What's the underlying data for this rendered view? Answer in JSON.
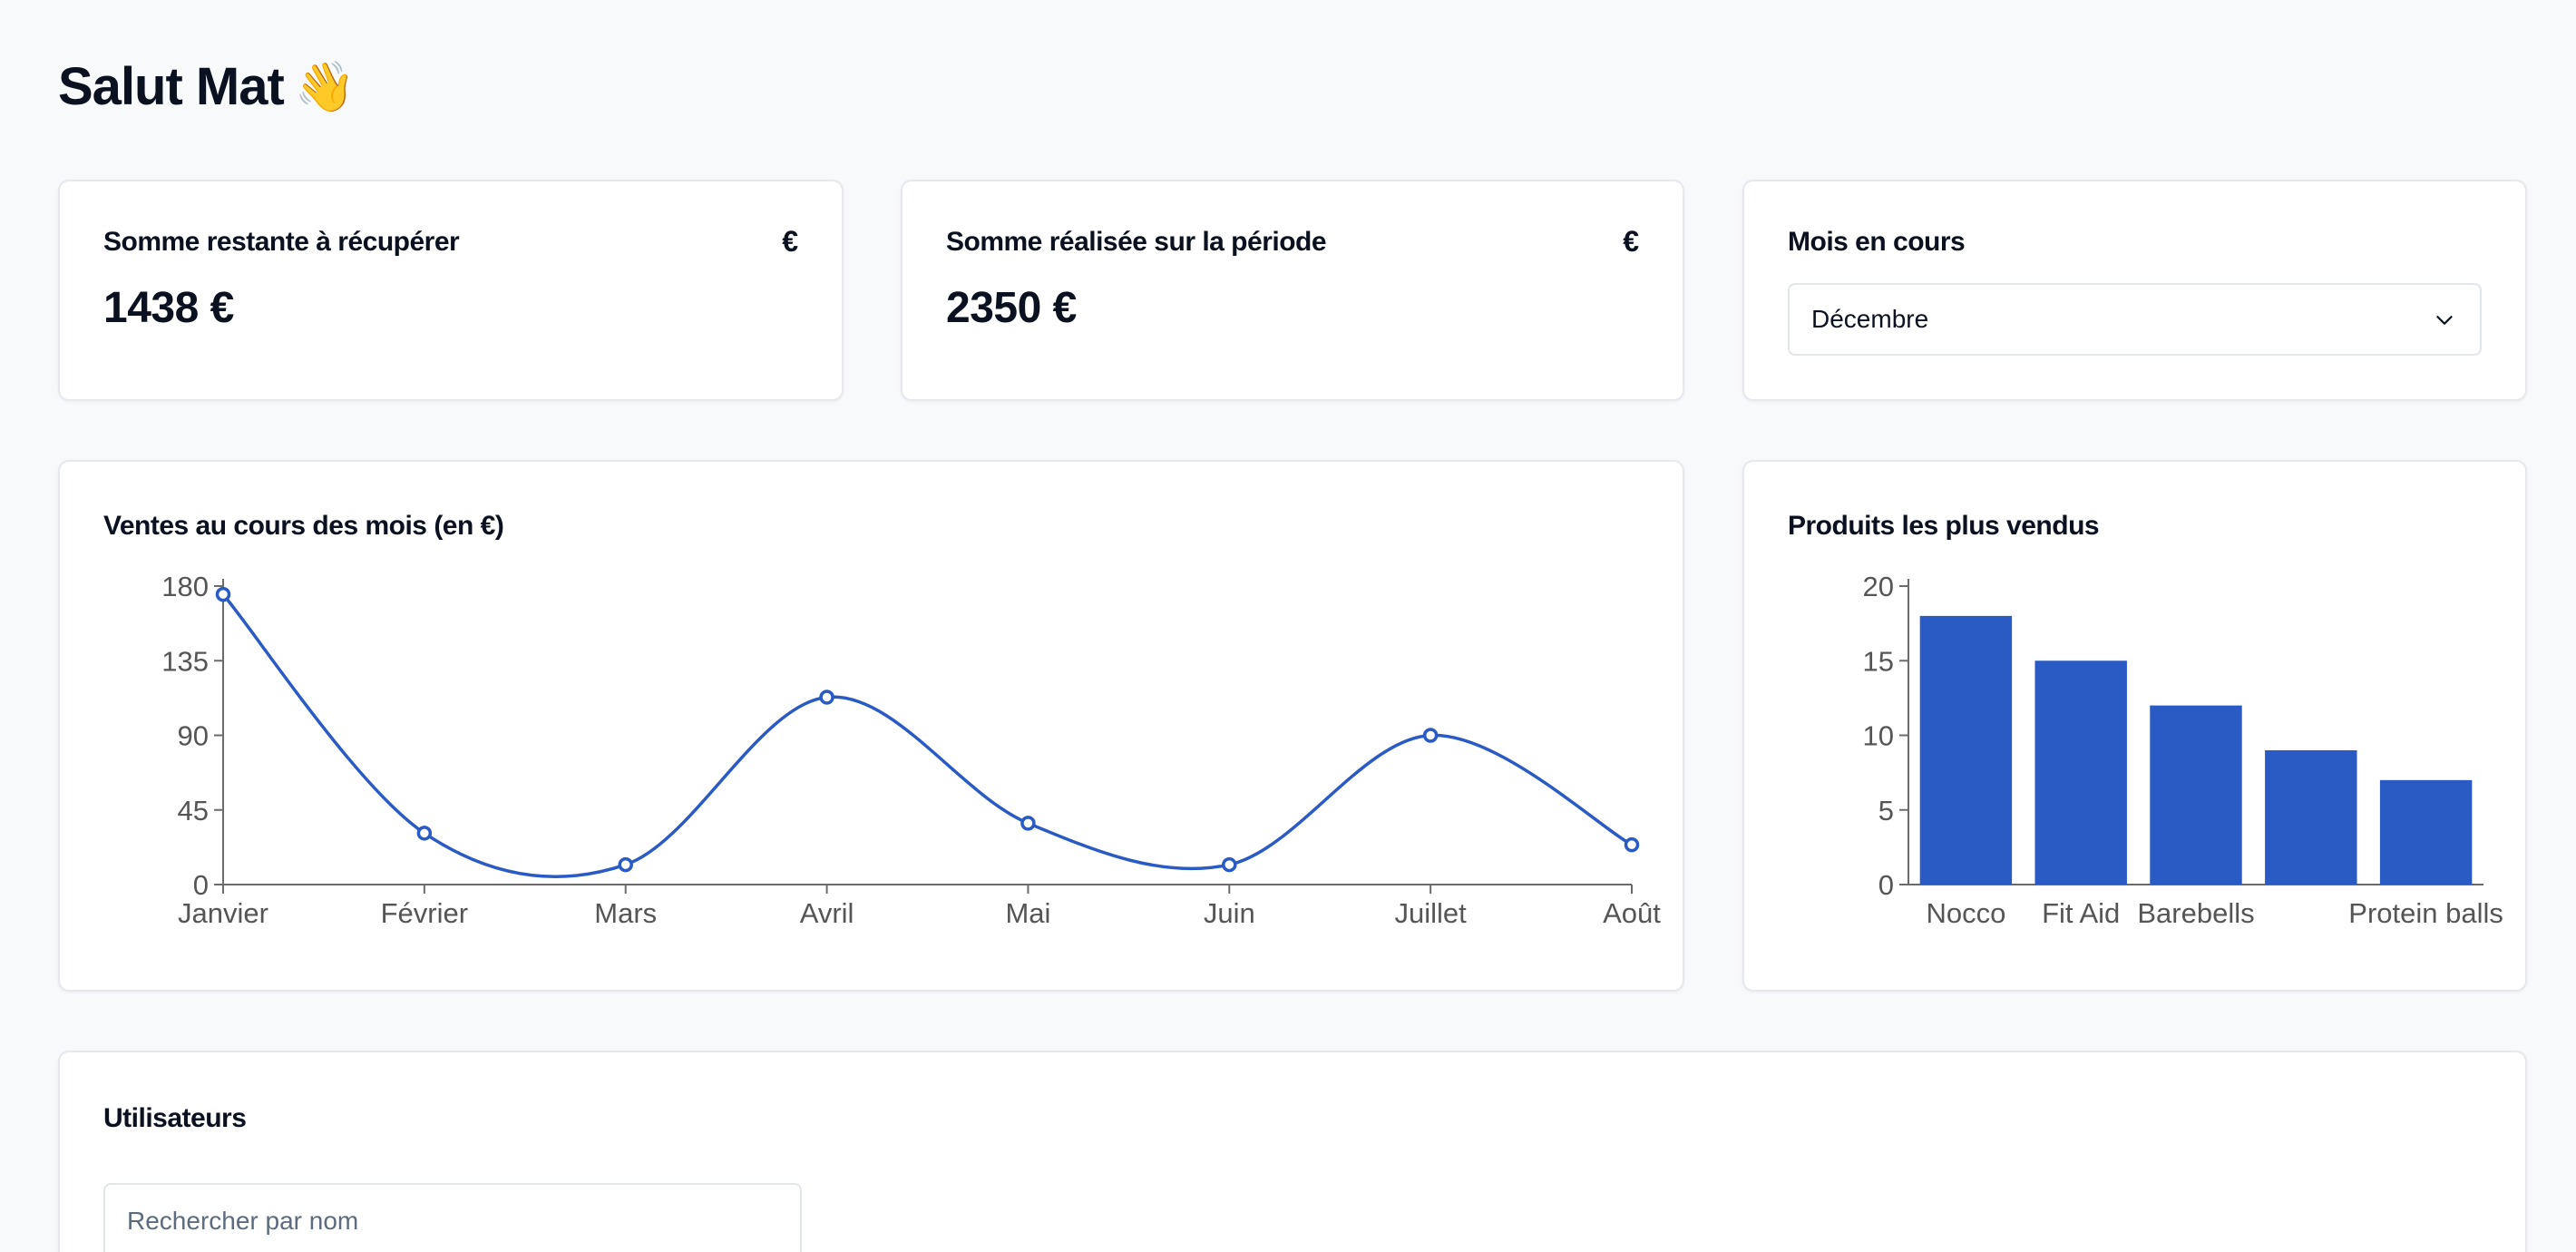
{
  "header": {
    "greeting": "Salut Mat",
    "emoji": "👋"
  },
  "stats": [
    {
      "title": "Somme restante à récupérer",
      "icon": "€",
      "value": "1438 €"
    },
    {
      "title": "Somme réalisée sur la période",
      "icon": "€",
      "value": "2350 €"
    }
  ],
  "month": {
    "title": "Mois en cours",
    "selected": "Décembre"
  },
  "sales": {
    "title": "Ventes au cours des mois (en €)",
    "chart_data": {
      "type": "line",
      "categories": [
        "Janvier",
        "Février",
        "Mars",
        "Avril",
        "Mai",
        "Juin",
        "Juillet",
        "Août"
      ],
      "values": [
        175,
        31,
        12,
        113,
        37,
        12,
        90,
        24
      ],
      "yticks": [
        "0",
        "45",
        "90",
        "135",
        "180"
      ],
      "ylim": [
        0,
        180
      ],
      "color": "#2a5bc4"
    }
  },
  "products": {
    "title": "Produits les plus vendus",
    "chart_data": {
      "type": "bar",
      "categories": [
        "Nocco",
        "Fit Aid",
        "Barebells",
        "",
        "Protein balls"
      ],
      "values": [
        18,
        15,
        12,
        9,
        7
      ],
      "yticks": [
        "0",
        "5",
        "10",
        "15",
        "20"
      ],
      "ylim": [
        0,
        20
      ],
      "color": "#2a5bc4"
    }
  },
  "users": {
    "title": "Utilisateurs",
    "search_placeholder": "Rechercher par nom"
  }
}
